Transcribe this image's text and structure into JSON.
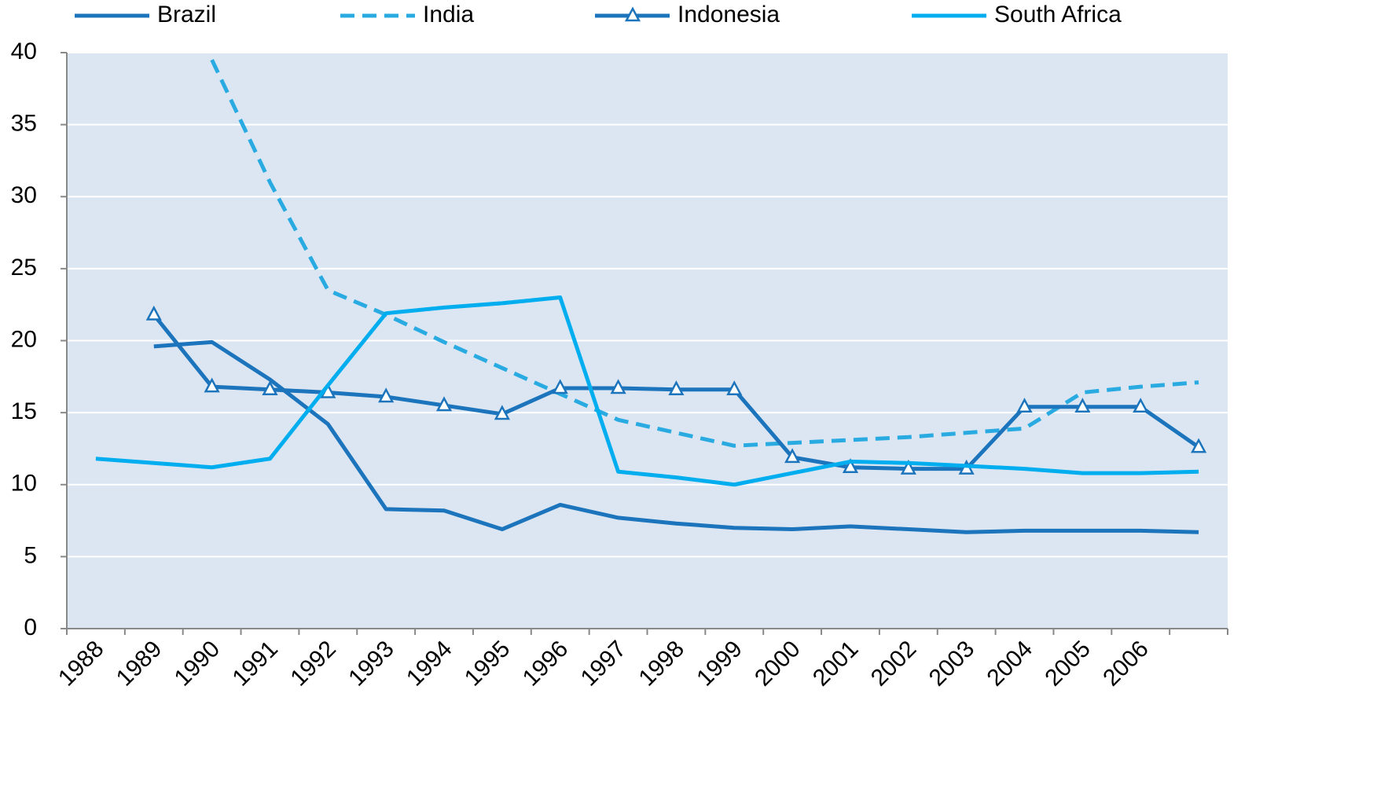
{
  "chart_data": {
    "type": "line",
    "categories": [
      "1988",
      "1989",
      "1990",
      "1991",
      "1992",
      "1993",
      "1994",
      "1995",
      "1996",
      "1997",
      "1998",
      "1999",
      "2000",
      "2001",
      "2002",
      "2003",
      "2004",
      "2005",
      "2006",
      null
    ],
    "series": [
      {
        "name": "Brazil",
        "color": "#1c75bc",
        "dash": false,
        "marker": null,
        "values": [
          null,
          19.6,
          19.9,
          17.3,
          14.2,
          8.3,
          8.2,
          6.9,
          8.6,
          7.7,
          7.3,
          7.0,
          6.9,
          7.1,
          6.9,
          6.7,
          6.8,
          6.8,
          6.8,
          6.7
        ]
      },
      {
        "name": "India",
        "color": "#29abe2",
        "dash": true,
        "marker": null,
        "values": [
          null,
          null,
          39.5,
          31,
          23.5,
          21.8,
          19.9,
          18.1,
          16.3,
          14.5,
          13.6,
          12.7,
          12.9,
          13.1,
          13.3,
          13.6,
          13.9,
          16.4,
          16.8,
          17.1
        ]
      },
      {
        "name": "Indonesia",
        "color": "#1c75bc",
        "dash": false,
        "marker": "triangle",
        "values": [
          null,
          21.8,
          16.8,
          16.6,
          16.4,
          16.1,
          15.5,
          14.9,
          16.7,
          16.7,
          16.6,
          16.6,
          11.9,
          11.2,
          11.1,
          11.1,
          15.4,
          15.4,
          15.4,
          12.6
        ]
      },
      {
        "name": "South Africa",
        "color": "#00aeef",
        "dash": false,
        "marker": null,
        "values": [
          11.8,
          11.5,
          11.2,
          11.8,
          16.9,
          21.9,
          22.3,
          22.6,
          23.0,
          10.9,
          10.5,
          10.0,
          10.8,
          11.6,
          11.5,
          11.3,
          11.1,
          10.8,
          10.8,
          10.9
        ]
      }
    ],
    "ylim": [
      0,
      40
    ],
    "yticks": [
      0,
      5,
      10,
      15,
      20,
      25,
      30,
      35,
      40
    ],
    "grid": true,
    "legend": "top"
  }
}
